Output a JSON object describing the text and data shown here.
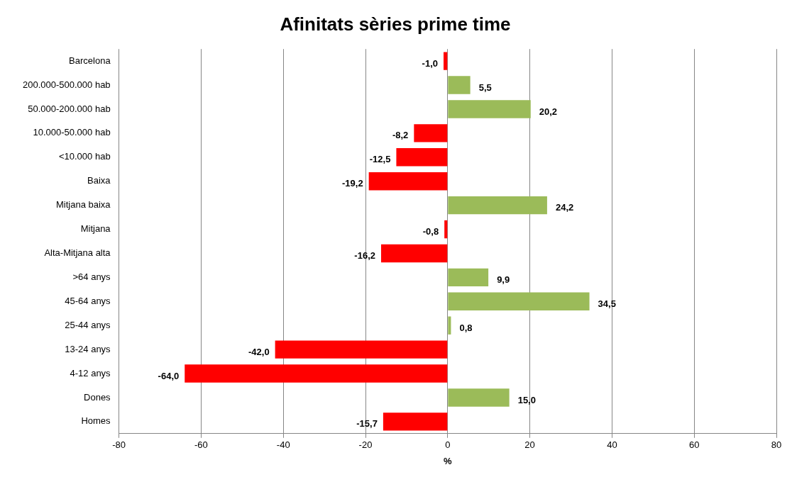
{
  "chart_data": {
    "type": "bar",
    "orientation": "horizontal",
    "title": "Afinitats sèries prime time",
    "xlabel": "%",
    "categories": [
      "Barcelona",
      "200.000-500.000 hab",
      "50.000-200.000 hab",
      "10.000-50.000 hab",
      "<10.000 hab",
      "Baixa",
      "Mitjana baixa",
      "Mitjana",
      "Alta-Mitjana alta",
      ">64 anys",
      "45-64 anys",
      "25-44 anys",
      "13-24 anys",
      "4-12 anys",
      "Dones",
      "Homes"
    ],
    "values": [
      -1.0,
      5.5,
      20.2,
      -8.2,
      -12.5,
      -19.2,
      24.2,
      -0.8,
      -16.2,
      9.9,
      34.5,
      0.8,
      -42.0,
      -64.0,
      15.0,
      -15.7
    ],
    "colors": [
      "#ff0000",
      "#9bbb59",
      "#9bbb59",
      "#ff0000",
      "#ff0000",
      "#ff0000",
      "#9bbb59",
      "#ff0000",
      "#ff0000",
      "#9bbb59",
      "#9bbb59",
      "#9bbb59",
      "#ff0000",
      "#ff0000",
      "#9bbb59",
      "#ff0000"
    ],
    "value_labels": [
      "-1,0",
      "5,5",
      "20,2",
      "-8,2",
      "-12,5",
      "-19,2",
      "24,2",
      "-0,8",
      "-16,2",
      "9,9",
      "34,5",
      "0,8",
      "-42,0",
      "-64,0",
      "15,0",
      "-15,7"
    ],
    "xlim": [
      -80,
      80
    ],
    "xticks": [
      -80,
      -60,
      -40,
      -20,
      0,
      20,
      40,
      60,
      80
    ],
    "grid": "x"
  }
}
